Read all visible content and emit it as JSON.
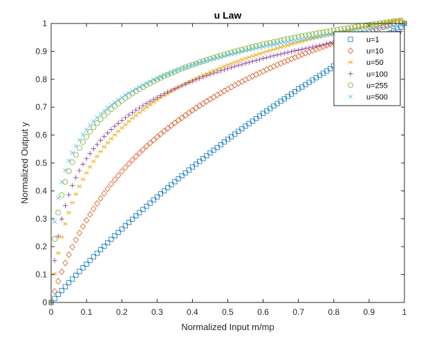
{
  "chart_data": {
    "type": "scatter",
    "title": "u Law",
    "xlabel": "Normalized Input m/mp",
    "ylabel": "Normalized Output y",
    "xlim": [
      0,
      1
    ],
    "ylim": [
      0,
      1
    ],
    "xticks": [
      "0",
      "0.1",
      "0.2",
      "0.3",
      "0.4",
      "0.5",
      "0.6",
      "0.7",
      "0.8",
      "0.9",
      "1"
    ],
    "yticks": [
      "0",
      "0.1",
      "0.2",
      "0.3",
      "0.4",
      "0.5",
      "0.6",
      "0.7",
      "0.8",
      "0.9",
      "1"
    ],
    "grid": false,
    "legend_position": "top-right",
    "x": [
      0,
      0.01,
      0.02,
      0.03,
      0.04,
      0.05,
      0.06,
      0.07,
      0.08,
      0.09,
      0.1,
      0.11,
      0.12,
      0.13,
      0.14,
      0.15,
      0.16,
      0.17,
      0.18,
      0.19,
      0.2,
      0.21,
      0.22,
      0.23,
      0.24,
      0.25,
      0.26,
      0.27,
      0.28,
      0.29,
      0.3,
      0.31,
      0.32,
      0.33,
      0.34,
      0.35,
      0.36,
      0.37,
      0.38,
      0.39,
      0.4,
      0.41,
      0.42,
      0.43,
      0.44,
      0.45,
      0.46,
      0.47,
      0.48,
      0.49,
      0.5,
      0.51,
      0.52,
      0.53,
      0.54,
      0.55,
      0.56,
      0.57,
      0.58,
      0.59,
      0.6,
      0.61,
      0.62,
      0.63,
      0.64,
      0.65,
      0.66,
      0.67,
      0.68,
      0.69,
      0.7,
      0.71,
      0.72,
      0.73,
      0.74,
      0.75,
      0.76,
      0.77,
      0.78,
      0.79,
      0.8,
      0.81,
      0.82,
      0.83,
      0.84,
      0.85,
      0.86,
      0.87,
      0.88,
      0.89,
      0.9,
      0.91,
      0.92,
      0.93,
      0.94,
      0.95,
      0.96,
      0.97,
      0.98,
      0.99,
      1
    ],
    "series": [
      {
        "name": "u=1",
        "marker": "square",
        "color": "#0072BD",
        "values": [
          0,
          0.0144,
          0.0286,
          0.0426,
          0.0566,
          0.0704,
          0.0841,
          0.0976,
          0.111,
          0.1243,
          0.1375,
          0.1506,
          0.1635,
          0.1763,
          0.189,
          0.2016,
          0.2141,
          0.2265,
          0.2388,
          0.251,
          0.263,
          0.275,
          0.2869,
          0.2987,
          0.3103,
          0.3219,
          0.3334,
          0.3448,
          0.3561,
          0.3673,
          0.3785,
          0.3895,
          0.4005,
          0.4114,
          0.4222,
          0.4329,
          0.4435,
          0.4541,
          0.4645,
          0.4749,
          0.4854,
          0.4955,
          0.5057,
          0.5158,
          0.5259,
          0.5359,
          0.5458,
          0.5556,
          0.5654,
          0.5751,
          0.585,
          0.5943,
          0.6038,
          0.6132,
          0.6226,
          0.6319,
          0.6411,
          0.6503,
          0.6594,
          0.6685,
          0.6781,
          0.6864,
          0.6952,
          0.7041,
          0.7128,
          0.7215,
          0.7301,
          0.7387,
          0.7472,
          0.7557,
          0.7655,
          0.7724,
          0.7807,
          0.789,
          0.7972,
          0.8054,
          0.8135,
          0.8216,
          0.8296,
          0.8375,
          0.848,
          0.8533,
          0.8611,
          0.8689,
          0.8766,
          0.8843,
          0.8919,
          0.8995,
          0.907,
          0.9145,
          0.9273,
          0.9293,
          0.9367,
          0.944,
          0.9513,
          0.9585,
          0.9657,
          0.9728,
          0.9799,
          0.9869,
          1
        ]
      },
      {
        "name": "u=10",
        "marker": "diamond",
        "color": "#D95319",
        "values": [
          0,
          0.0397,
          0.0763,
          0.1101,
          0.1415,
          0.1709,
          0.1985,
          0.2245,
          0.249,
          0.2723,
          0.2944,
          0.3154,
          0.3355,
          0.3547,
          0.3731,
          0.3908,
          0.4077,
          0.424,
          0.4398,
          0.4549,
          0.4696,
          0.4837,
          0.4974,
          0.5107,
          0.5235,
          0.536,
          0.5481,
          0.5599,
          0.5713,
          0.5824,
          0.5933,
          0.6039,
          0.6142,
          0.6242,
          0.634,
          0.6436,
          0.653,
          0.6621,
          0.6711,
          0.6798,
          0.6884,
          0.6968,
          0.705,
          0.713,
          0.7209,
          0.7286,
          0.7362,
          0.7436,
          0.7509,
          0.758,
          0.7651,
          0.772,
          0.7787,
          0.7854,
          0.7919,
          0.7983,
          0.8047,
          0.8109,
          0.817,
          0.823,
          0.8289,
          0.8347,
          0.8404,
          0.8461,
          0.8516,
          0.8571,
          0.8625,
          0.8678,
          0.873,
          0.8781,
          0.8832,
          0.8882,
          0.8932,
          0.898,
          0.9028,
          0.9076,
          0.9122,
          0.9169,
          0.9214,
          0.9259,
          0.9303,
          0.9347,
          0.939,
          0.9433,
          0.9475,
          0.9516,
          0.9557,
          0.9598,
          0.9638,
          0.9678,
          0.9717,
          0.9756,
          0.9794,
          0.9832,
          0.9869,
          0.9906,
          0.9943,
          0.9979,
          1.0014,
          1.005,
          1
        ]
      },
      {
        "name": "u=50",
        "marker": "asterisk",
        "color": "#EDB120",
        "values": [
          0,
          0.103,
          0.1768,
          0.2344,
          0.2818,
          0.3221,
          0.3572,
          0.3883,
          0.4162,
          0.4414,
          0.4646,
          0.4858,
          0.5055,
          0.5239,
          0.5411,
          0.5572,
          0.5725,
          0.5869,
          0.6006,
          0.6136,
          0.626,
          0.6379,
          0.6492,
          0.6601,
          0.6705,
          0.6805,
          0.6902,
          0.6995,
          0.7084,
          0.7171,
          0.7255,
          0.7336,
          0.7415,
          0.7491,
          0.7565,
          0.7637,
          0.7706,
          0.7774,
          0.784,
          0.7904,
          0.7966,
          0.8027,
          0.8086,
          0.8144,
          0.8201,
          0.8256,
          0.831,
          0.8362,
          0.8414,
          0.8464,
          0.8513,
          0.8562,
          0.8609,
          0.8655,
          0.8701,
          0.8745,
          0.8789,
          0.8832,
          0.8874,
          0.8915,
          0.8956,
          0.8996,
          0.9035,
          0.9073,
          0.9111,
          0.9149,
          0.9185,
          0.9221,
          0.9257,
          0.9292,
          0.9326,
          0.936,
          0.9394,
          0.9427,
          0.9459,
          0.9491,
          0.9523,
          0.9554,
          0.9585,
          0.9615,
          0.9645,
          0.9675,
          0.9704,
          0.9733,
          0.9761,
          0.9789,
          0.9817,
          0.9845,
          0.9872,
          0.9898,
          0.9925,
          0.9951,
          0.9977,
          1.0002,
          1.0027,
          1.0052,
          1.0077,
          1.0101,
          1.0125,
          1.0149,
          1
        ]
      },
      {
        "name": "u=100",
        "marker": "plus",
        "color": "#7E2F8E",
        "values": [
          0,
          0.1504,
          0.2377,
          0.2993,
          0.3471,
          0.3861,
          0.4191,
          0.4476,
          0.4727,
          0.4952,
          0.5154,
          0.5339,
          0.5509,
          0.5666,
          0.5812,
          0.5949,
          0.6078,
          0.6199,
          0.6313,
          0.6422,
          0.6525,
          0.6624,
          0.6718,
          0.6808,
          0.6894,
          0.6977,
          0.7057,
          0.7133,
          0.7207,
          0.7279,
          0.7348,
          0.7415,
          0.7479,
          0.7542,
          0.7603,
          0.7662,
          0.7719,
          0.7775,
          0.7829,
          0.7882,
          0.7933,
          0.7983,
          0.8032,
          0.8079,
          0.8126,
          0.8171,
          0.8215,
          0.8258,
          0.8301,
          0.8342,
          0.8382,
          0.8422,
          0.8461,
          0.8499,
          0.8536,
          0.8573,
          0.8609,
          0.8644,
          0.8678,
          0.8712,
          0.8746,
          0.8778,
          0.8811,
          0.8842,
          0.8873,
          0.8904,
          0.8934,
          0.8963,
          0.8992,
          0.9021,
          0.9049,
          0.9077,
          0.9104,
          0.9131,
          0.9158,
          0.9184,
          0.921,
          0.9235,
          0.926,
          0.9285,
          0.9309,
          0.9333,
          0.9357,
          0.9381,
          0.9404,
          0.9427,
          0.9449,
          0.9472,
          0.9494,
          0.9515,
          0.9537,
          0.9558,
          0.9579,
          0.96,
          0.962,
          0.964,
          0.966,
          0.968,
          0.9699,
          0.9719,
          1
        ]
      },
      {
        "name": "u=255",
        "marker": "circle",
        "color": "#77AC30",
        "values": [
          0,
          0.228,
          0.3224,
          0.385,
          0.4322,
          0.4704,
          0.5023,
          0.5298,
          0.5539,
          0.5753,
          0.5945,
          0.6121,
          0.6281,
          0.6429,
          0.6567,
          0.6695,
          0.6815,
          0.6928,
          0.7035,
          0.7136,
          0.7232,
          0.7323,
          0.741,
          0.7493,
          0.7573,
          0.7649,
          0.7722,
          0.7793,
          0.7861,
          0.7926,
          0.7989,
          0.805,
          0.8109,
          0.8166,
          0.8222,
          0.8275,
          0.8327,
          0.8378,
          0.8427,
          0.8475,
          0.8521,
          0.8566,
          0.861,
          0.8653,
          0.8695,
          0.8736,
          0.8776,
          0.8815,
          0.8853,
          0.889,
          0.8927,
          0.8962,
          0.8997,
          0.9031,
          0.9065,
          0.9098,
          0.913,
          0.9161,
          0.9192,
          0.9222,
          0.9252,
          0.9281,
          0.931,
          0.9338,
          0.9366,
          0.9393,
          0.942,
          0.9446,
          0.9472,
          0.9497,
          0.9522,
          0.9547,
          0.9571,
          0.9595,
          0.9619,
          0.9642,
          0.9665,
          0.9687,
          0.9709,
          0.9731,
          0.9753,
          0.9774,
          0.9795,
          0.9815,
          0.9836,
          0.9856,
          0.9876,
          0.9895,
          0.9915,
          0.9934,
          0.9952,
          0.9971,
          0.9989,
          1.0007,
          1.0025,
          1.0043,
          1.006,
          1.0077,
          1.0094,
          1.0111,
          1
        ]
      },
      {
        "name": "u=500",
        "marker": "cross",
        "color": "#4DBEEE",
        "values": [
          0,
          0.2894,
          0.3752,
          0.4313,
          0.4736,
          0.5078,
          0.5364,
          0.561,
          0.5826,
          0.6019,
          0.6192,
          0.6349,
          0.6493,
          0.6626,
          0.675,
          0.6865,
          0.6973,
          0.7075,
          0.7171,
          0.7262,
          0.7348,
          0.743,
          0.7508,
          0.7583,
          0.7655,
          0.7723,
          0.7789,
          0.7853,
          0.7914,
          0.7973,
          0.8029,
          0.8084,
          0.8137,
          0.8189,
          0.8239,
          0.8287,
          0.8334,
          0.8379,
          0.8423,
          0.8466,
          0.8508,
          0.8548,
          0.8588,
          0.8627,
          0.8664,
          0.8701,
          0.8737,
          0.8772,
          0.8806,
          0.884,
          0.8873,
          0.8905,
          0.8936,
          0.8967,
          0.8997,
          0.9027,
          0.9056,
          0.9084,
          0.9112,
          0.9139,
          0.9166,
          0.9192,
          0.9218,
          0.9243,
          0.9268,
          0.9293,
          0.9317,
          0.9341,
          0.9364,
          0.9387,
          0.9409,
          0.9431,
          0.9453,
          0.9474,
          0.9495,
          0.9516,
          0.9537,
          0.9557,
          0.9577,
          0.9596,
          0.9615,
          0.9634,
          0.9653,
          0.9671,
          0.969,
          0.9708,
          0.9725,
          0.9743,
          0.976,
          0.9777,
          0.9794,
          0.981,
          0.9826,
          0.9843,
          0.9858,
          0.9874,
          0.989,
          0.9905,
          0.992,
          0.9935,
          1
        ]
      }
    ]
  }
}
